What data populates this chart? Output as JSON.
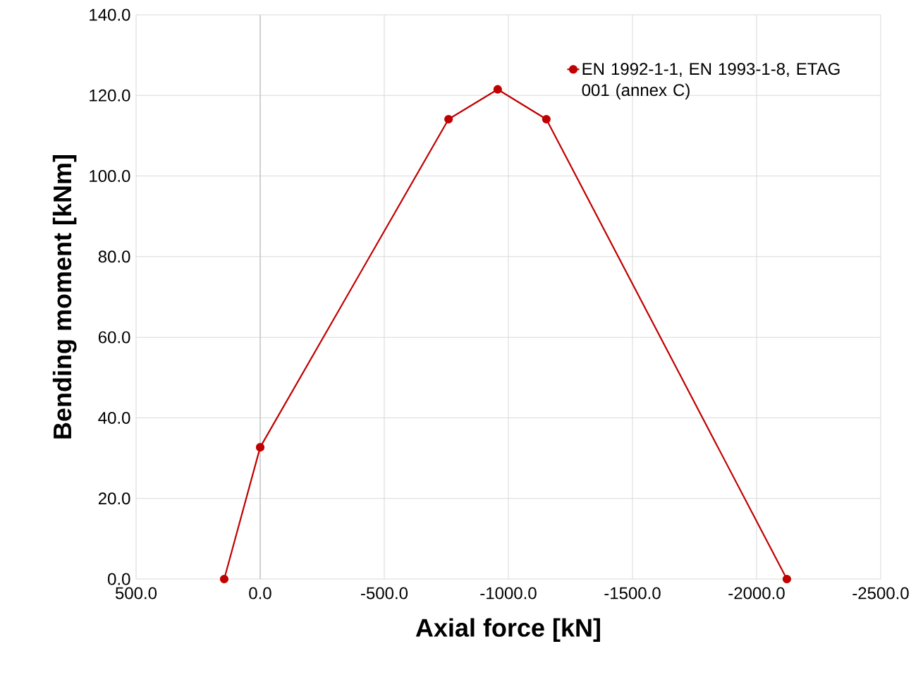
{
  "chart_data": {
    "type": "line",
    "xlabel": "Axial force [kN]",
    "ylabel": "Bending moment [kNm]",
    "x": [
      145,
      0,
      -759,
      -957,
      -1153,
      -2122
    ],
    "series": [
      {
        "name": "EN 1992-1-1, EN 1993-1-8, ETAG 001 (annex C)",
        "color": "#c00000",
        "values": [
          0.0,
          32.7,
          114.1,
          121.5,
          114.1,
          0.0
        ]
      }
    ],
    "xlim": [
      500,
      -2500
    ],
    "ylim": [
      0,
      140
    ],
    "xticks": [
      {
        "value": 500,
        "label": "500.0"
      },
      {
        "value": 0,
        "label": "0.0"
      },
      {
        "value": -500,
        "label": "-500.0"
      },
      {
        "value": -1000,
        "label": "-1000.0"
      },
      {
        "value": -1500,
        "label": "-1500.0"
      },
      {
        "value": -2000,
        "label": "-2000.0"
      },
      {
        "value": -2500,
        "label": "-2500.0"
      }
    ],
    "yticks": [
      {
        "value": 0,
        "label": "0.0"
      },
      {
        "value": 20,
        "label": "20.0"
      },
      {
        "value": 40,
        "label": "40.0"
      },
      {
        "value": 60,
        "label": "60.0"
      },
      {
        "value": 80,
        "label": "80.0"
      },
      {
        "value": 100,
        "label": "100.0"
      },
      {
        "value": 120,
        "label": "120.0"
      },
      {
        "value": 140,
        "label": "140.0"
      }
    ],
    "ref_lines": [
      {
        "axis": "x",
        "value": 0,
        "color": "#bfbfbf"
      }
    ],
    "grid": true,
    "legend": "top right",
    "marker": "circle",
    "line_style": "solid"
  }
}
